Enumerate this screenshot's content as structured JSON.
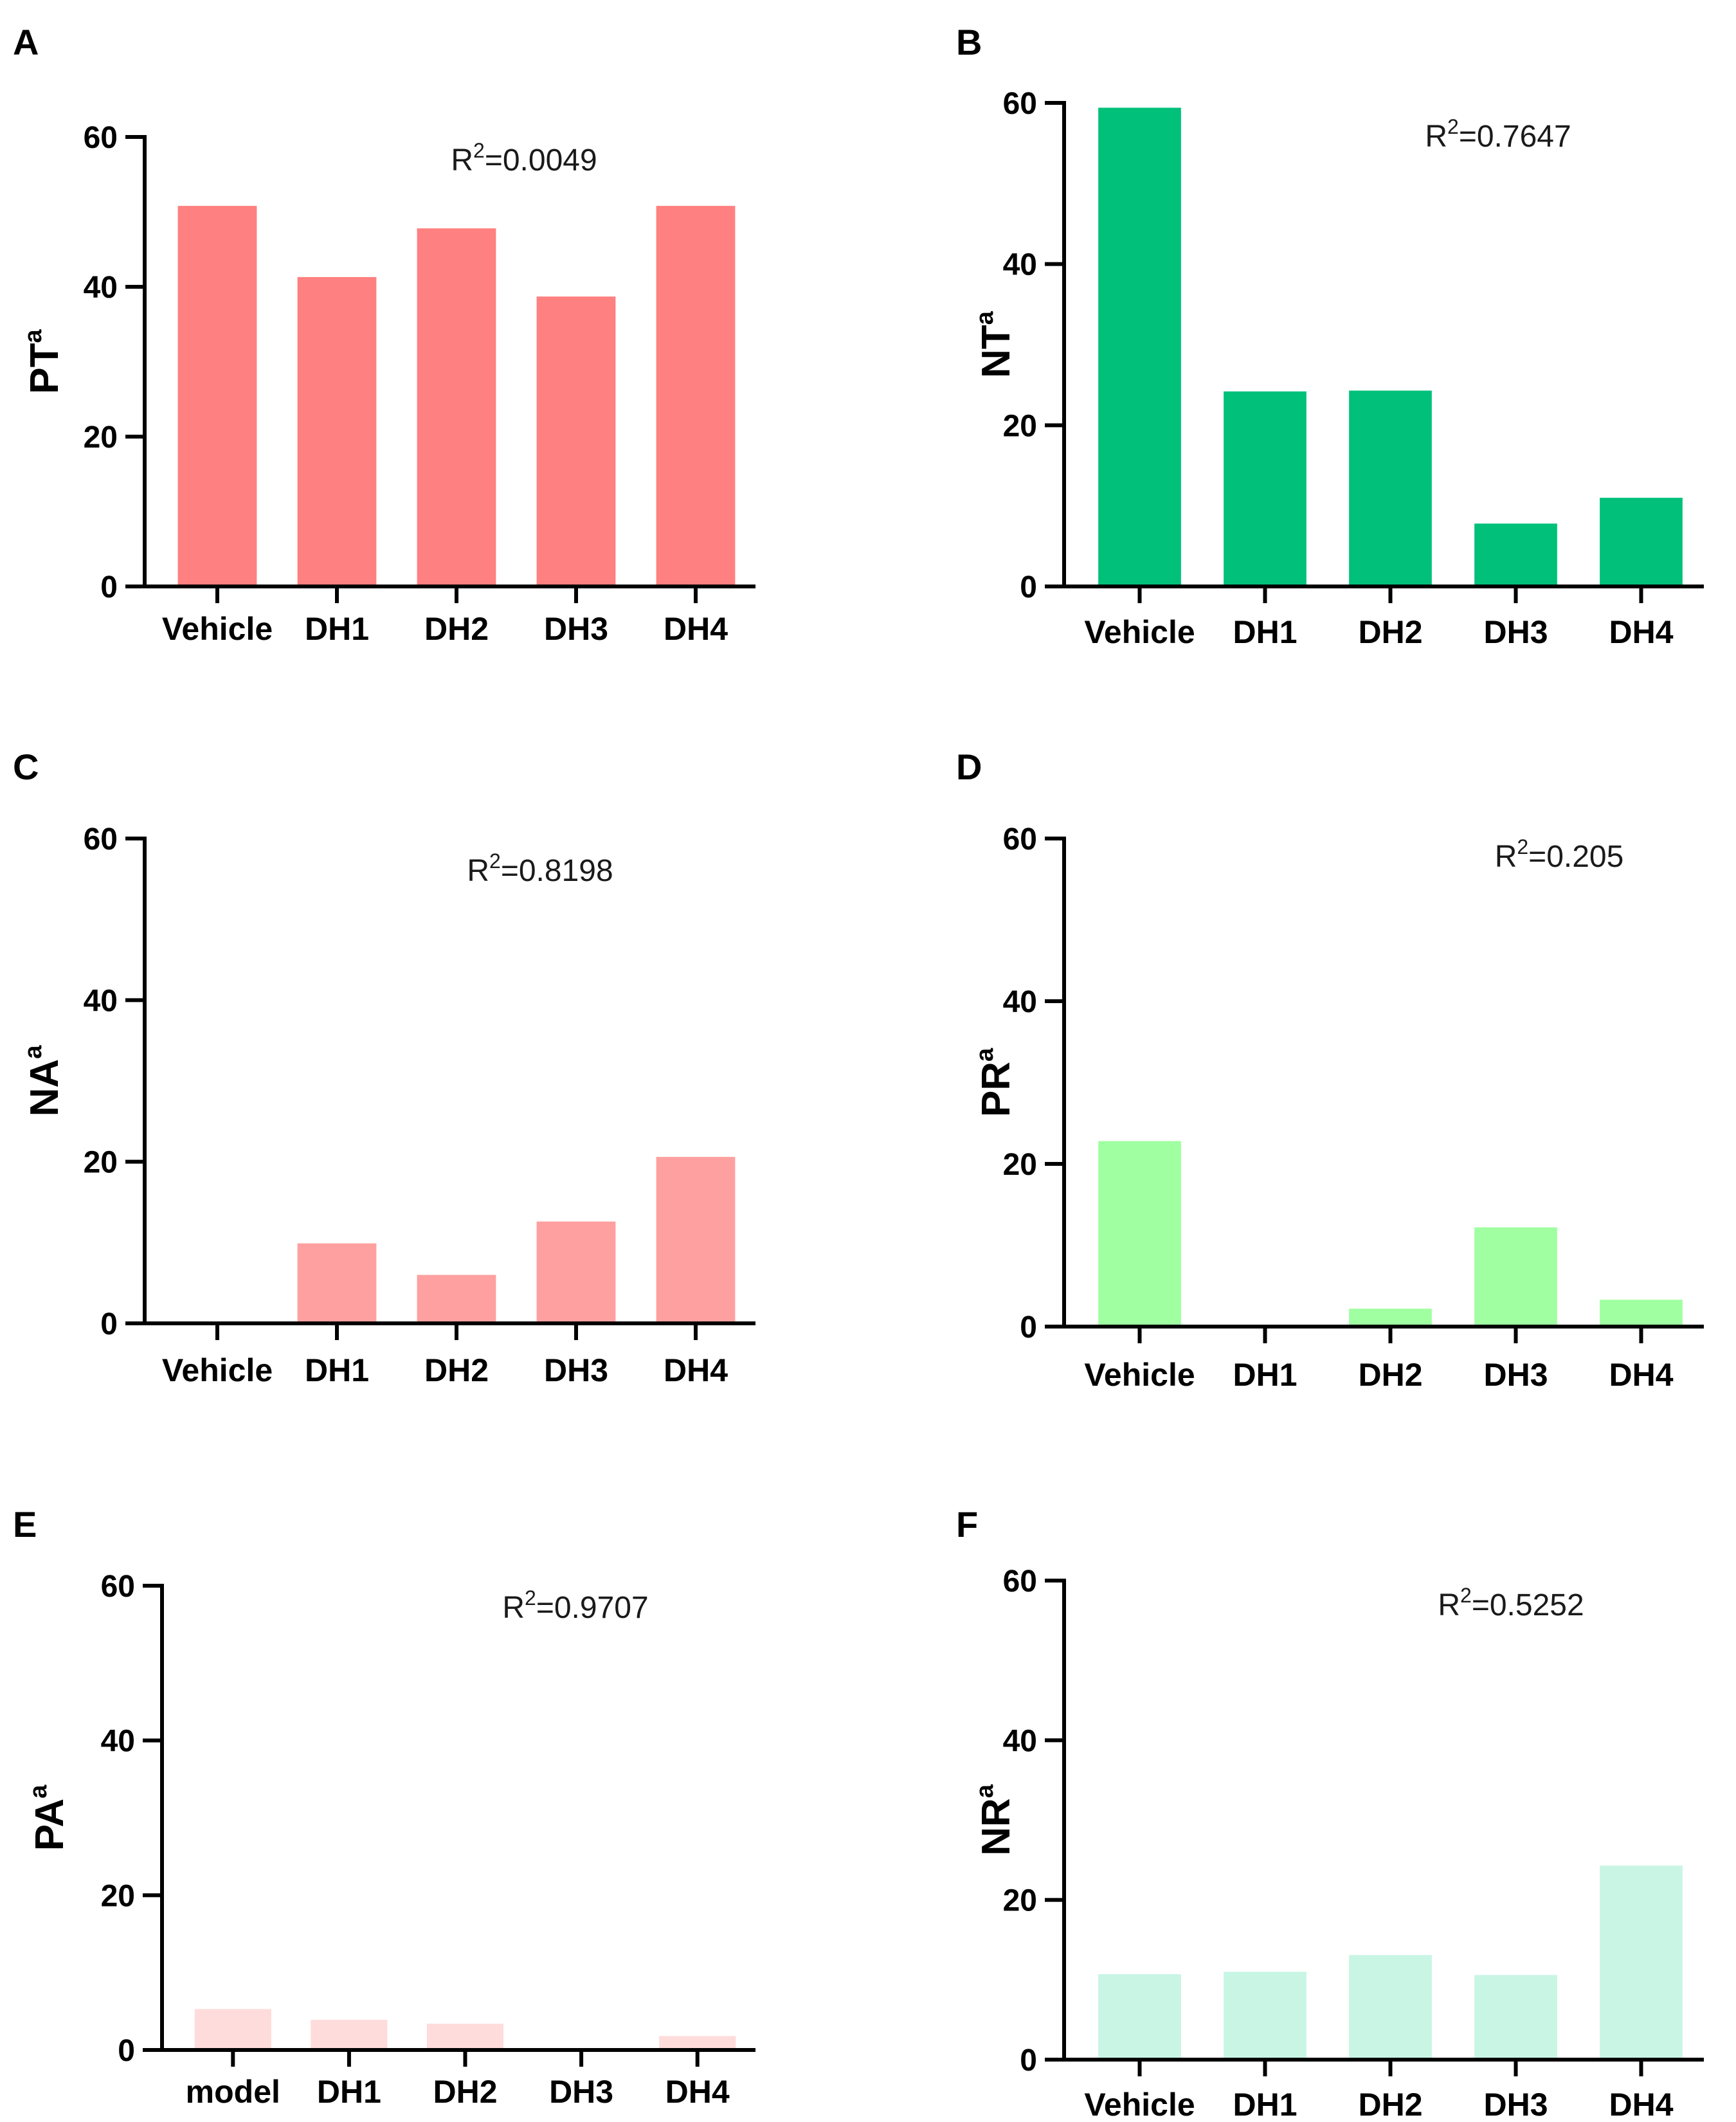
{
  "figure": {
    "panels": [
      "A",
      "B",
      "C",
      "D",
      "E",
      "F"
    ]
  },
  "chart_data": [
    {
      "panel": "A",
      "type": "bar",
      "ylabel": "PT",
      "ylabel_sup": "a",
      "r2_prefix": "R",
      "r2_exp": "2",
      "r2_value": "=0.0049",
      "categories": [
        "Vehicle",
        "DH1",
        "DH2",
        "DH3",
        "DH4"
      ],
      "values": [
        50.8,
        41.3,
        47.8,
        38.7,
        50.8
      ],
      "ylim": [
        0,
        60
      ],
      "yticks": [
        0,
        20,
        40,
        60
      ],
      "color": "#FF8080"
    },
    {
      "panel": "B",
      "type": "bar",
      "ylabel": "NT",
      "ylabel_sup": "a",
      "r2_prefix": "R",
      "r2_exp": "2",
      "r2_value": "=0.7647",
      "categories": [
        "Vehicle",
        "DH1",
        "DH2",
        "DH3",
        "DH4"
      ],
      "values": [
        59.4,
        24.2,
        24.3,
        7.8,
        11.0
      ],
      "ylim": [
        0,
        60
      ],
      "yticks": [
        0,
        20,
        40,
        60
      ],
      "color": "#00C07A"
    },
    {
      "panel": "C",
      "type": "bar",
      "ylabel": "NA",
      "ylabel_sup": "a",
      "r2_prefix": "R",
      "r2_exp": "2",
      "r2_value": "=0.8198",
      "categories": [
        "Vehicle",
        "DH1",
        "DH2",
        "DH3",
        "DH4"
      ],
      "values": [
        0,
        9.9,
        6.0,
        12.6,
        20.6
      ],
      "ylim": [
        0,
        60
      ],
      "yticks": [
        0,
        20,
        40,
        60
      ],
      "color": "#FFA0A0"
    },
    {
      "panel": "D",
      "type": "bar",
      "ylabel": "PR",
      "ylabel_sup": "a",
      "r2_prefix": "R",
      "r2_exp": "2",
      "r2_value": "=0.205",
      "categories": [
        "Vehicle",
        "DH1",
        "DH2",
        "DH3",
        "DH4"
      ],
      "values": [
        22.8,
        0,
        2.2,
        12.2,
        3.3
      ],
      "ylim": [
        0,
        60
      ],
      "yticks": [
        0,
        20,
        40,
        60
      ],
      "color": "#A0FFA0"
    },
    {
      "panel": "E",
      "type": "bar",
      "ylabel": "PA",
      "ylabel_sup": "a",
      "r2_prefix": "R",
      "r2_exp": "2",
      "r2_value": "=0.9707",
      "categories": [
        "model",
        "DH1",
        "DH2",
        "DH3",
        "DH4"
      ],
      "values": [
        5.3,
        3.9,
        3.4,
        0,
        1.8
      ],
      "ylim": [
        0,
        60
      ],
      "yticks": [
        0,
        20,
        40,
        60
      ],
      "color": "#FFDCDC"
    },
    {
      "panel": "F",
      "type": "bar",
      "ylabel": "NR",
      "ylabel_sup": "a",
      "r2_prefix": "R",
      "r2_exp": "2",
      "r2_value": "=0.5252",
      "categories": [
        "Vehicle",
        "DH1",
        "DH2",
        "DH3",
        "DH4"
      ],
      "values": [
        10.7,
        11.0,
        13.1,
        10.6,
        24.3
      ],
      "ylim": [
        0,
        60
      ],
      "yticks": [
        0,
        20,
        40,
        60
      ],
      "color": "#C8F5E4"
    }
  ]
}
